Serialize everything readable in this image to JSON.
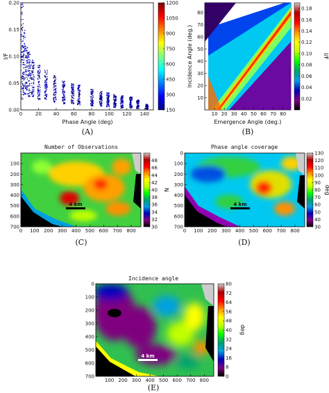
{
  "colors": {
    "jet": [
      "#00007f",
      "#0000ff",
      "#007fff",
      "#00ffff",
      "#7fff7f",
      "#ffff00",
      "#ff7f00",
      "#ff0000",
      "#7f0000"
    ],
    "spectral": [
      "#000000",
      "#7f007f",
      "#0000bb",
      "#00a0e0",
      "#00a070",
      "#00ff00",
      "#c0ff00",
      "#ffff00",
      "#ff9000",
      "#ff0000",
      "#b00000",
      "#cccccc"
    ],
    "black": "#000000"
  },
  "chart_data": [
    {
      "id": "A",
      "type": "scatter",
      "panel_label": "(A)",
      "title": "",
      "xlabel": "Phase Angle (deg)",
      "ylabel": "I/F",
      "xlim": [
        0,
        150
      ],
      "ylim": [
        0,
        0.2
      ],
      "xticks": [
        0,
        20,
        40,
        60,
        80,
        100,
        120,
        140
      ],
      "yticks": [
        "0.00",
        "0.05",
        "0.10",
        "0.15",
        "0.20"
      ],
      "colorbar": {
        "min": 150,
        "max": 1200,
        "ticks": [
          150,
          300,
          450,
          600,
          750,
          900,
          1050,
          1200
        ]
      },
      "clusters": [
        {
          "phase": 1,
          "if_min": 0.02,
          "if_max": 0.2
        },
        {
          "phase": 3,
          "if_min": 0.03,
          "if_max": 0.15
        },
        {
          "phase": 6,
          "if_min": 0.03,
          "if_max": 0.12
        },
        {
          "phase": 9,
          "if_min": 0.025,
          "if_max": 0.11
        },
        {
          "phase": 13,
          "if_min": 0.025,
          "if_max": 0.095
        },
        {
          "phase": 20,
          "if_min": 0.02,
          "if_max": 0.085
        },
        {
          "phase": 28,
          "if_min": 0.02,
          "if_max": 0.075
        },
        {
          "phase": 38,
          "if_min": 0.015,
          "if_max": 0.065
        },
        {
          "phase": 48,
          "if_min": 0.012,
          "if_max": 0.055
        },
        {
          "phase": 58,
          "if_min": 0.012,
          "if_max": 0.05
        },
        {
          "phase": 65,
          "if_min": 0.01,
          "if_max": 0.048
        },
        {
          "phase": 80,
          "if_min": 0.008,
          "if_max": 0.04
        },
        {
          "phase": 90,
          "if_min": 0.007,
          "if_max": 0.036
        },
        {
          "phase": 98,
          "if_min": 0.006,
          "if_max": 0.033
        },
        {
          "phase": 106,
          "if_min": 0.005,
          "if_max": 0.03
        },
        {
          "phase": 114,
          "if_min": 0.004,
          "if_max": 0.027
        },
        {
          "phase": 124,
          "if_min": 0.004,
          "if_max": 0.025
        },
        {
          "phase": 132,
          "if_min": 0.003,
          "if_max": 0.02
        },
        {
          "phase": 142,
          "if_min": 0.002,
          "if_max": 0.012
        }
      ]
    },
    {
      "id": "B",
      "type": "heatmap",
      "panel_label": "(B)",
      "title": "",
      "xlabel": "Emergence Angle (deg.)",
      "ylabel": "Incidence Angle (deg.)",
      "xlim": [
        0,
        88
      ],
      "ylim": [
        0,
        88
      ],
      "xticks": [
        10,
        20,
        30,
        40,
        50,
        60,
        70,
        80
      ],
      "yticks": [
        10,
        20,
        30,
        40,
        50,
        60,
        70,
        80
      ],
      "colorbar": {
        "label": "I/F",
        "min": 0,
        "max": 0.19,
        "ticks": [
          "0.02",
          "0.04",
          "0.06",
          "0.08",
          "0.10",
          "0.12",
          "0.14",
          "0.16",
          "0.18"
        ]
      }
    },
    {
      "id": "C",
      "type": "heatmap",
      "panel_label": "(C)",
      "title": "Number of Observations",
      "xlabel": "",
      "ylabel": "",
      "xlim": [
        0,
        870
      ],
      "ylim": [
        700,
        0
      ],
      "xticks": [
        0,
        100,
        200,
        300,
        400,
        500,
        600,
        700,
        800
      ],
      "yticks": [
        100,
        200,
        300,
        400,
        500,
        600,
        700
      ],
      "colorbar": {
        "label": "N",
        "min": 30,
        "max": 50,
        "ticks": [
          30,
          32,
          34,
          36,
          38,
          40,
          42,
          44,
          46,
          48
        ]
      },
      "scalebar": "4 km"
    },
    {
      "id": "D",
      "type": "heatmap",
      "panel_label": "(D)",
      "title": "Phase angle coverage",
      "xlabel": "",
      "ylabel": "",
      "xlim": [
        0,
        870
      ],
      "ylim": [
        700,
        0
      ],
      "xticks": [
        0,
        100,
        200,
        300,
        400,
        500,
        600,
        700,
        800
      ],
      "yticks": [
        0,
        100,
        200,
        300,
        400,
        500,
        600,
        700
      ],
      "colorbar": {
        "label": "deg",
        "min": 30,
        "max": 130,
        "ticks": [
          30,
          40,
          50,
          60,
          70,
          80,
          90,
          100,
          110,
          120,
          130
        ]
      },
      "scalebar": "4 km"
    },
    {
      "id": "E",
      "type": "heatmap",
      "panel_label": "(E)",
      "title": "Incidence angle",
      "xlabel": "",
      "ylabel": "",
      "xlim": [
        0,
        870
      ],
      "ylim": [
        700,
        0
      ],
      "xticks": [
        100,
        200,
        300,
        400,
        500,
        600,
        700,
        800
      ],
      "yticks": [
        0,
        100,
        200,
        300,
        400,
        500,
        600,
        700
      ],
      "colorbar": {
        "label": "deg",
        "min": 0,
        "max": 80,
        "ticks": [
          0,
          8,
          16,
          24,
          32,
          40,
          48,
          56,
          64,
          72,
          80
        ]
      },
      "scalebar": "4 km"
    }
  ]
}
